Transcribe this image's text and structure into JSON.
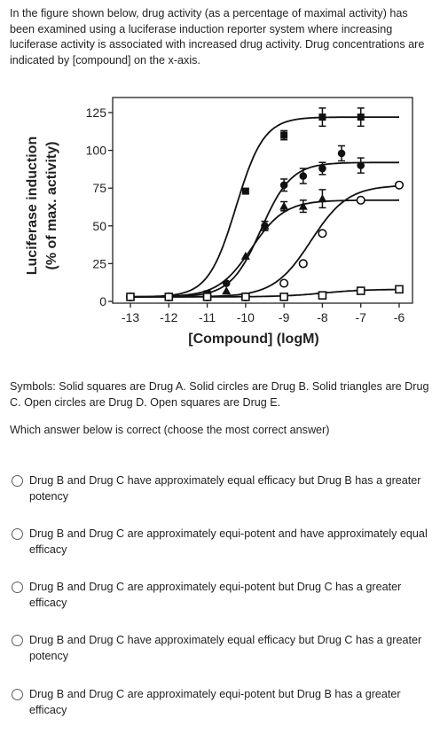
{
  "intro_text": "In the figure shown below, drug activity (as a percentage of maximal activity) has been examined using a luciferase induction reporter system where increasing luciferase activity is associated with increased drug activity.  Drug concentrations are indicated by [compound] on the x-axis.",
  "symbols_text": "Symbols: Solid squares are Drug A. Solid circles are Drug B. Solid triangles are Drug C. Open circles are Drug D. Open squares are Drug E.",
  "question_text": "Which answer below is correct (choose the most correct answer)",
  "options": [
    {
      "label": "Drug B and Drug C have approximately equal efficacy but Drug B has a greater potency"
    },
    {
      "label": "Drug B and Drug C are approximately equi-potent and have approximately equal efficacy"
    },
    {
      "label": "Drug B and Drug C are approximately equi-potent but Drug C has a greater efficacy"
    },
    {
      "label": "Drug B and Drug C have approximately equal efficacy but Drug C has a greater potency"
    },
    {
      "label": "Drug B and Drug C are approximately equi-potent but Drug B has a greater efficacy"
    }
  ],
  "chart_data": {
    "type": "line",
    "xlabel": "[Compound] (logM)",
    "ylabel_line1": "Luciferase induction",
    "ylabel_line2": "(% of max.  activity)",
    "xlim": [
      -13,
      -6
    ],
    "ylim": [
      0,
      125
    ],
    "x_ticks": [
      -13,
      -12,
      -11,
      -10,
      -9,
      -8,
      -7,
      -6
    ],
    "x_tick_labels": [
      "-13",
      "-12",
      "-11",
      "-10",
      "-9",
      "-8",
      "-7",
      "-6"
    ],
    "y_ticks": [
      0,
      25,
      50,
      75,
      100,
      125
    ],
    "y_tick_labels": [
      "0",
      "25",
      "50",
      "75",
      "100",
      "125"
    ],
    "grid": false,
    "series": [
      {
        "marker": "square-filled",
        "x": [
          -13,
          -12,
          -11,
          -10,
          -9,
          -8,
          -7
        ],
        "y": [
          3,
          3,
          5,
          73,
          110,
          122,
          122
        ],
        "err": [
          0,
          0,
          0,
          0,
          3,
          6,
          6
        ]
      },
      {
        "marker": "circle-filled",
        "x": [
          -13,
          -12,
          -11,
          -10.5,
          -9.5,
          -9,
          -8.5,
          -8,
          -7.5,
          -7
        ],
        "y": [
          3,
          3,
          5,
          12,
          50,
          77,
          83,
          88,
          98,
          90
        ],
        "err": [
          0,
          0,
          0,
          0,
          3,
          4,
          5,
          4,
          5,
          5
        ]
      },
      {
        "marker": "triangle-filled",
        "x": [
          -13,
          -12,
          -11,
          -10.5,
          -10,
          -9.5,
          -9,
          -8.5,
          -8
        ],
        "y": [
          3,
          3,
          3,
          7,
          30,
          50,
          63,
          63,
          68
        ],
        "err": [
          0,
          0,
          0,
          0,
          0,
          3,
          3,
          4,
          6
        ]
      },
      {
        "marker": "circle-open",
        "x": [
          -13,
          -12,
          -11,
          -10,
          -9,
          -8.5,
          -8,
          -7,
          -6
        ],
        "y": [
          3,
          3,
          3,
          3,
          12,
          25,
          45,
          67,
          77
        ],
        "err": [
          0,
          0,
          0,
          0,
          0,
          0,
          0,
          0,
          0
        ]
      },
      {
        "marker": "square-open",
        "x": [
          -13,
          -12,
          -11,
          -10,
          -9,
          -8,
          -7,
          -6
        ],
        "y": [
          3,
          3,
          3,
          3,
          3,
          4,
          7,
          8
        ],
        "err": [
          0,
          0,
          0,
          0,
          0,
          0,
          0,
          0
        ]
      }
    ],
    "curves": [
      {
        "top": 122,
        "bottom": 3,
        "logEC50": -10.25,
        "hill": 1.2
      },
      {
        "top": 92,
        "bottom": 3,
        "logEC50": -9.6,
        "hill": 1.1
      },
      {
        "top": 67,
        "bottom": 3,
        "logEC50": -9.85,
        "hill": 1.0
      },
      {
        "top": 77,
        "bottom": 3,
        "logEC50": -8.3,
        "hill": 0.9
      },
      {
        "top": 8,
        "bottom": 3,
        "logEC50": -8.0,
        "hill": 0.8
      }
    ]
  }
}
